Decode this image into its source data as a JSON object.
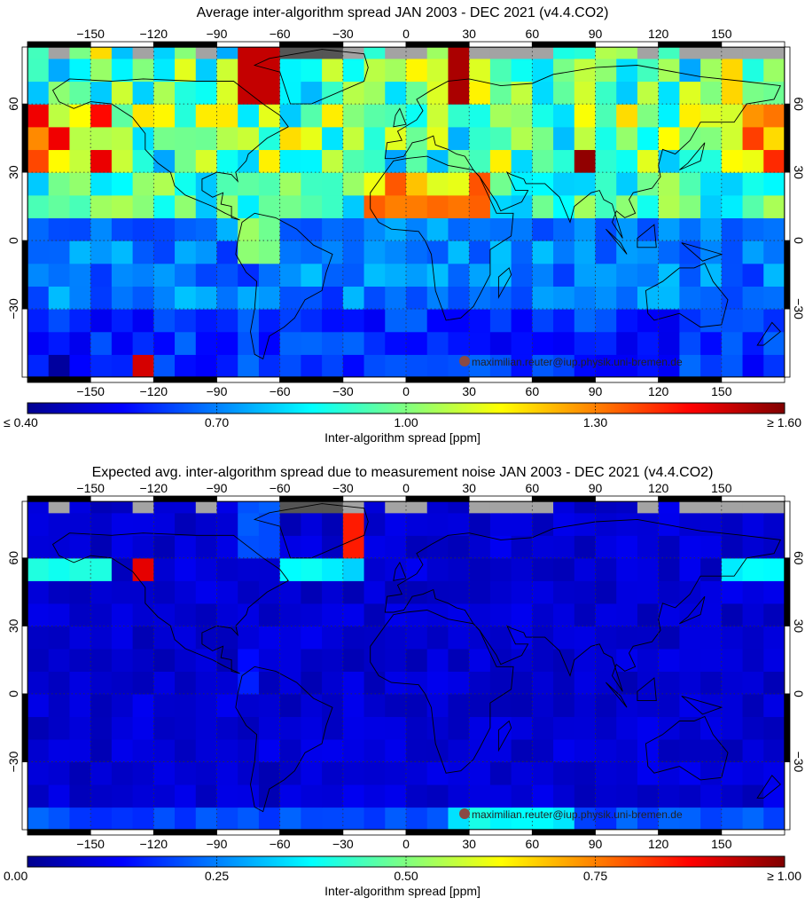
{
  "panels": [
    {
      "title": "Average inter-algorithm spread JAN 2003 - DEC 2021 (v4.4.CO2)",
      "colorbar": {
        "label": "Inter-algorithm spread [ppm]",
        "tick_labels": [
          "≤ 0.40",
          "0.70",
          "1.00",
          "1.30",
          "≥ 1.60"
        ],
        "min": 0.4,
        "max": 1.6
      },
      "attribution": "maximilian.reuter@iup.physik.uni-bremen.de",
      "lon_labels": [
        "-150",
        "-120",
        "-90",
        "-60",
        "-30",
        "0",
        "30",
        "60",
        "90",
        "120",
        "150"
      ],
      "lat_labels": [
        "60",
        "30",
        "0",
        "-30"
      ]
    },
    {
      "title": "Expected avg. inter-algorithm spread due to measurement noise JAN 2003 - DEC 2021 (v4.4.CO2)",
      "colorbar": {
        "label": "Inter-algorithm spread [ppm]",
        "tick_labels": [
          "0.00",
          "0.25",
          "0.50",
          "0.75",
          "≥ 1.00"
        ],
        "min": 0.0,
        "max": 1.0
      },
      "attribution": "maximilian.reuter@iup.physik.uni-bremen.de",
      "lon_labels": [
        "-150",
        "-120",
        "-90",
        "-60",
        "-30",
        "0",
        "30",
        "60",
        "90",
        "120",
        "150"
      ],
      "lat_labels": [
        "60",
        "30",
        "0",
        "-30"
      ]
    }
  ],
  "colors": {
    "no_data": "#a3a3a3",
    "greenland": "#555555",
    "colormap": [
      "#00008f",
      "#0000ff",
      "#0080ff",
      "#00ffff",
      "#80ff80",
      "#ffff00",
      "#ff8000",
      "#ff0000",
      "#800000"
    ]
  },
  "map": {
    "lon_range": [
      -180,
      180
    ],
    "lat_range": [
      -60,
      85
    ],
    "cell_size_deg": 10,
    "grid_lon_step_deg": 30,
    "grid_lat_step_deg": 30
  }
}
